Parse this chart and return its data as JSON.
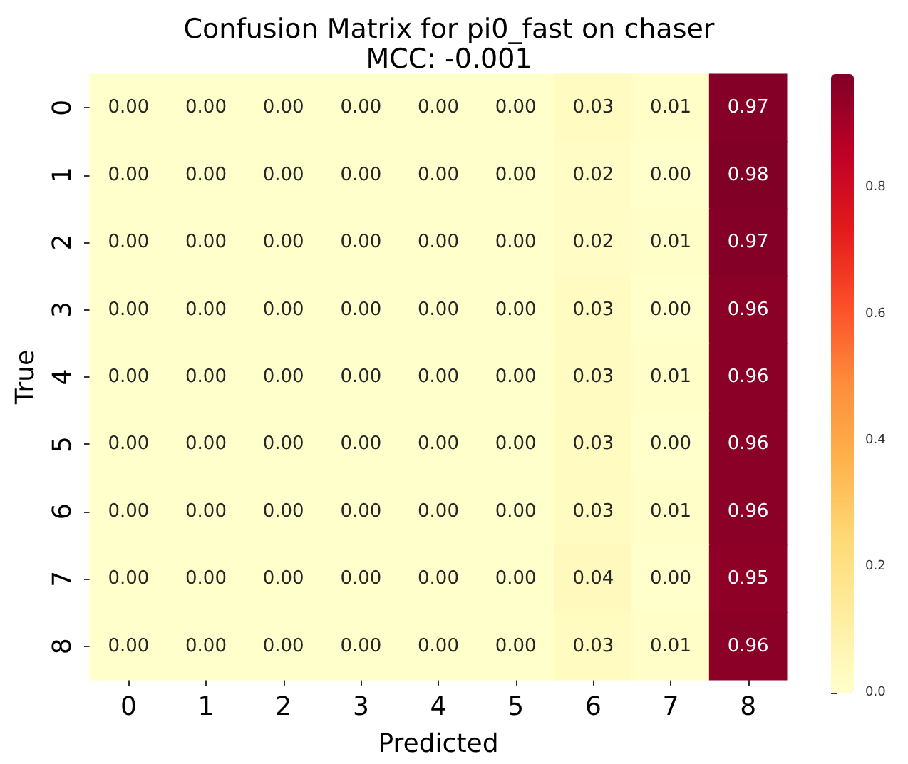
{
  "chart_data": {
    "type": "heatmap",
    "title": "Confusion Matrix for pi0_fast on chaser",
    "subtitle": "MCC: -0.001",
    "xlabel": "Predicted",
    "ylabel": "True",
    "categories": [
      "0",
      "1",
      "2",
      "3",
      "4",
      "5",
      "6",
      "7",
      "8"
    ],
    "y_categories": [
      "0",
      "1",
      "2",
      "3",
      "4",
      "5",
      "6",
      "7",
      "8"
    ],
    "cells": [
      [
        0,
        0,
        0,
        0,
        0,
        0,
        0.03,
        0.01,
        0.97
      ],
      [
        0,
        0,
        0,
        0,
        0,
        0,
        0.02,
        0,
        0.98
      ],
      [
        0,
        0,
        0,
        0,
        0,
        0,
        0.02,
        0.01,
        0.97
      ],
      [
        0,
        0,
        0,
        0,
        0,
        0,
        0.03,
        0,
        0.96
      ],
      [
        0,
        0,
        0,
        0,
        0,
        0,
        0.03,
        0.01,
        0.96
      ],
      [
        0,
        0,
        0,
        0,
        0,
        0,
        0.03,
        0,
        0.96
      ],
      [
        0,
        0,
        0,
        0,
        0,
        0,
        0.03,
        0.01,
        0.96
      ],
      [
        0,
        0,
        0,
        0,
        0,
        0,
        0.04,
        0,
        0.95
      ],
      [
        0,
        0,
        0,
        0,
        0,
        0,
        0.03,
        0.01,
        0.96
      ]
    ],
    "cell_labels": [
      [
        "0.00",
        "0.00",
        "0.00",
        "0.00",
        "0.00",
        "0.00",
        "0.03",
        "0.01",
        "0.97"
      ],
      [
        "0.00",
        "0.00",
        "0.00",
        "0.00",
        "0.00",
        "0.00",
        "0.02",
        "0.00",
        "0.98"
      ],
      [
        "0.00",
        "0.00",
        "0.00",
        "0.00",
        "0.00",
        "0.00",
        "0.02",
        "0.01",
        "0.97"
      ],
      [
        "0.00",
        "0.00",
        "0.00",
        "0.00",
        "0.00",
        "0.00",
        "0.03",
        "0.00",
        "0.96"
      ],
      [
        "0.00",
        "0.00",
        "0.00",
        "0.00",
        "0.00",
        "0.00",
        "0.03",
        "0.01",
        "0.96"
      ],
      [
        "0.00",
        "0.00",
        "0.00",
        "0.00",
        "0.00",
        "0.00",
        "0.03",
        "0.00",
        "0.96"
      ],
      [
        "0.00",
        "0.00",
        "0.00",
        "0.00",
        "0.00",
        "0.00",
        "0.03",
        "0.01",
        "0.96"
      ],
      [
        "0.00",
        "0.00",
        "0.00",
        "0.00",
        "0.00",
        "0.00",
        "0.04",
        "0.00",
        "0.95"
      ],
      [
        "0.00",
        "0.00",
        "0.00",
        "0.00",
        "0.00",
        "0.00",
        "0.03",
        "0.01",
        "0.96"
      ]
    ],
    "data_labels": true,
    "clim": [
      0,
      0.98
    ],
    "cticks": [
      {
        "value": 0,
        "label": "0.0"
      },
      {
        "value": 0.2,
        "label": "0.2"
      },
      {
        "value": 0.4,
        "label": "0.4"
      },
      {
        "value": 0.6,
        "label": "0.6"
      },
      {
        "value": 0.8,
        "label": "0.8"
      }
    ]
  }
}
